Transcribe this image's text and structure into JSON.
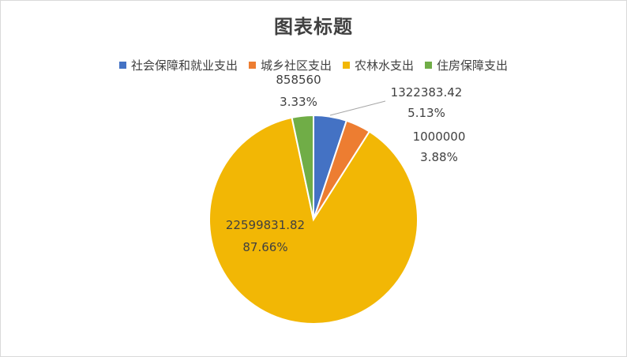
{
  "chart_data": {
    "type": "pie",
    "title": "图表标题",
    "legend_position": "top",
    "categories": [
      "社会保障和就业支出",
      "城乡社区支出",
      "农林水支出",
      "住房保障支出"
    ],
    "values": [
      1322383.42,
      1000000,
      22599831.82,
      858560
    ],
    "percent_labels": [
      "5.13%",
      "3.88%",
      "87.66%",
      "3.33%"
    ],
    "value_labels": [
      "1322383.42",
      "1000000",
      "22599831.82",
      "858560"
    ],
    "colors": [
      "#4472c4",
      "#ed7d31",
      "#f2b705",
      "#70ad47"
    ]
  }
}
